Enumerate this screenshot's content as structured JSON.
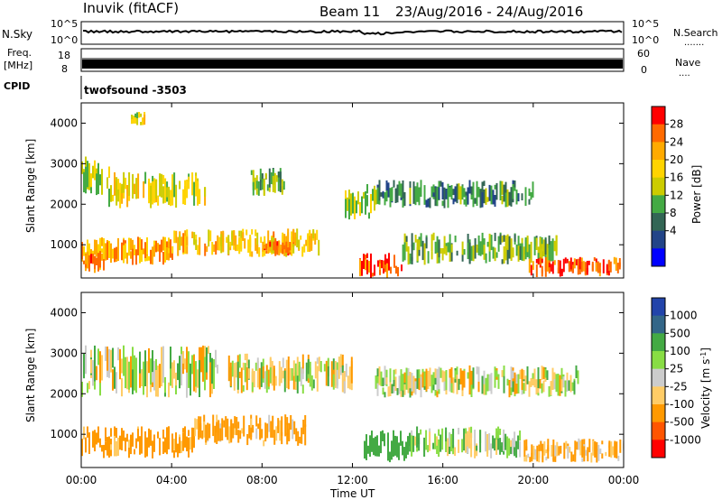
{
  "header": {
    "station": "Inuvik (fitACF)",
    "beam": "Beam 11",
    "date_range": "23/Aug/2016 - 24/Aug/2016"
  },
  "noise_panel": {
    "label": "N.Sky",
    "right_label": "N.Search",
    "left_ticks": [
      "10^5",
      "10^0"
    ],
    "right_ticks": [
      "10^5",
      "10^0"
    ]
  },
  "freq_panel": {
    "label_line1": "Freq.",
    "label_line2": "[MHz]",
    "left_ticks": [
      "18",
      "8"
    ],
    "right_label": "Nave",
    "right_ticks": [
      "60",
      "0"
    ]
  },
  "cpid_panel": {
    "label": "CPID",
    "program": "twofsound -3503"
  },
  "power_bar": {
    "title": "Power [dB]",
    "ticks": [
      "28",
      "24",
      "20",
      "16",
      "12",
      "8",
      "4"
    ],
    "colors": [
      "#ff0000",
      "#ff6a00",
      "#ffaa00",
      "#ffd400",
      "#cccc00",
      "#44aa44",
      "#336655",
      "#224488",
      "#0000ff"
    ]
  },
  "velocity_bar": {
    "title": "Velocity [m s",
    "title_sup": "-1",
    "title_end": "]",
    "ticks": [
      "1000",
      "500",
      "100",
      "25",
      "-25",
      "-100",
      "-500",
      "-1000"
    ],
    "colors": [
      "#2244aa",
      "#336688",
      "#44aa44",
      "#88dd44",
      "#cccccc",
      "#ffcc66",
      "#ff9900",
      "#ff5500",
      "#ff0000"
    ]
  },
  "x_axis": {
    "label": "Time UT",
    "ticks": [
      "00:00",
      "04:00",
      "08:00",
      "12:00",
      "16:00",
      "20:00",
      "00:00"
    ]
  },
  "chart_data": [
    {
      "type": "heatmap",
      "name": "Power",
      "ylabel": "Slant Range [km]",
      "xlabel": "Time UT",
      "ylim": [
        180,
        4500
      ],
      "y_ticks": [
        1000,
        2000,
        3000,
        4000
      ],
      "colorbar": "Power [dB]",
      "clim": [
        0,
        30
      ],
      "regions": [
        {
          "t0": 0.0,
          "t1": 1.2,
          "r0": 2200,
          "r1": 3200,
          "db": 14
        },
        {
          "t0": 1.2,
          "t1": 5.5,
          "r0": 1900,
          "r1": 2800,
          "db": 17
        },
        {
          "t0": 2.2,
          "t1": 2.8,
          "r0": 3900,
          "r1": 4300,
          "db": 16
        },
        {
          "t0": 7.5,
          "t1": 9.0,
          "r0": 2200,
          "r1": 2900,
          "db": 12
        },
        {
          "t0": 11.5,
          "t1": 13.0,
          "r0": 1600,
          "r1": 2500,
          "db": 15
        },
        {
          "t0": 13.0,
          "t1": 20.0,
          "r0": 1900,
          "r1": 2600,
          "db": 9
        },
        {
          "t0": 0.0,
          "t1": 4.0,
          "r0": 500,
          "r1": 1200,
          "db": 22
        },
        {
          "t0": 4.0,
          "t1": 10.5,
          "r0": 700,
          "r1": 1400,
          "db": 20
        },
        {
          "t0": 8.0,
          "t1": 9.2,
          "r0": 700,
          "r1": 1100,
          "db": 26
        },
        {
          "t0": 12.3,
          "t1": 14.2,
          "r0": 180,
          "r1": 800,
          "db": 28
        },
        {
          "t0": 14.2,
          "t1": 21.0,
          "r0": 500,
          "r1": 1300,
          "db": 12
        },
        {
          "t0": 19.8,
          "t1": 23.8,
          "r0": 200,
          "r1": 700,
          "db": 27
        },
        {
          "t0": 0.0,
          "t1": 1.0,
          "r0": 300,
          "r1": 900,
          "db": 24
        }
      ]
    },
    {
      "type": "heatmap",
      "name": "Velocity",
      "ylabel": "Slant Range [km]",
      "xlabel": "Time UT",
      "ylim": [
        180,
        4500
      ],
      "y_ticks": [
        1000,
        2000,
        3000,
        4000
      ],
      "colorbar": "Velocity [m s-1]",
      "clim": [
        -1000,
        1000
      ],
      "regions": [
        {
          "t0": 0.0,
          "t1": 6.0,
          "r0": 1900,
          "r1": 3200,
          "v": 0
        },
        {
          "t0": 6.5,
          "t1": 12.0,
          "r0": 2000,
          "r1": 3000,
          "v": 0
        },
        {
          "t0": 13.0,
          "t1": 22.0,
          "r0": 1900,
          "r1": 2700,
          "v": 0
        },
        {
          "t0": 0.0,
          "t1": 5.0,
          "r0": 400,
          "r1": 1200,
          "v": -200
        },
        {
          "t0": 5.0,
          "t1": 10.0,
          "r0": 700,
          "r1": 1500,
          "v": -150
        },
        {
          "t0": 12.5,
          "t1": 14.5,
          "r0": 300,
          "r1": 1100,
          "v": 300
        },
        {
          "t0": 14.5,
          "t1": 19.5,
          "r0": 400,
          "r1": 1200,
          "v": 60
        },
        {
          "t0": 19.5,
          "t1": 24.0,
          "r0": 300,
          "r1": 900,
          "v": -120
        }
      ]
    }
  ]
}
